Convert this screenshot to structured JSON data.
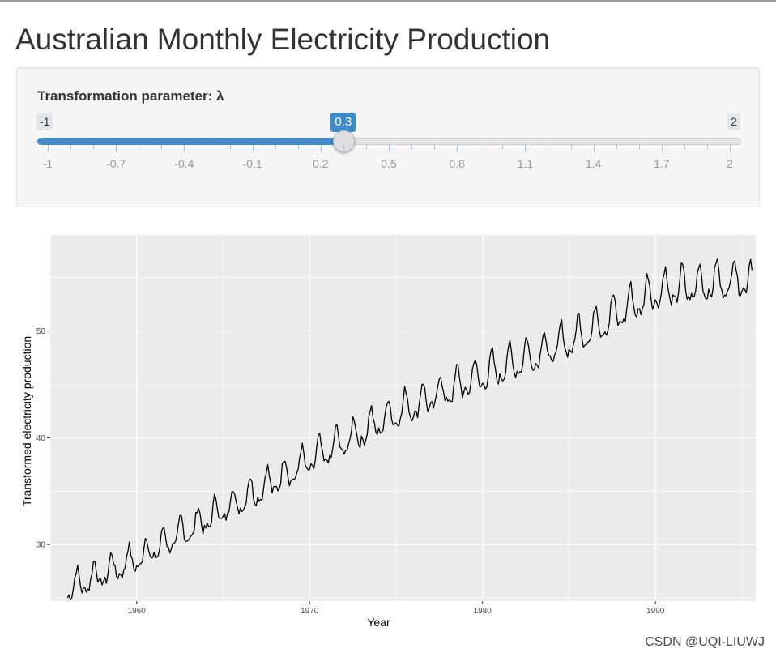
{
  "app": {
    "title": "Australian Monthly Electricity Production",
    "watermark": "CSDN @UQI-LIUWJ"
  },
  "slider": {
    "label": "Transformation parameter: λ",
    "min": -1,
    "max": 2,
    "value": 0.3,
    "min_label": "-1",
    "max_label": "2",
    "value_label": "0.3",
    "ticks": [
      "-1",
      "-0.7",
      "-0.4",
      "-0.1",
      "0.2",
      "0.5",
      "0.8",
      "1.1",
      "1.4",
      "1.7",
      "2"
    ],
    "accent_color": "#428bca"
  },
  "chart_data": {
    "type": "line",
    "title": "",
    "xlabel": "Year",
    "ylabel": "Transformed electricity production",
    "xlim": [
      1955,
      1995.8
    ],
    "ylim": [
      24.7,
      59
    ],
    "x_ticks": [
      1960,
      1970,
      1980,
      1990
    ],
    "x_tick_labels": [
      "1960",
      "1970",
      "1980",
      "1990"
    ],
    "y_ticks": [
      30,
      40,
      50
    ],
    "y_tick_labels": [
      "30",
      "40",
      "50"
    ],
    "grid": true,
    "panel_background": "#ebebeb",
    "line_color": "#000000",
    "series": [
      {
        "name": "Transformed electricity production",
        "start_year": 1956,
        "end_year": 1995.6,
        "frequency": "monthly",
        "trend_anchors": [
          [
            1956,
            25.8
          ],
          [
            1960,
            28.6
          ],
          [
            1965,
            33.2
          ],
          [
            1970,
            37.8
          ],
          [
            1975,
            42.3
          ],
          [
            1980,
            45.8
          ],
          [
            1985,
            49.0
          ],
          [
            1990,
            53.6
          ],
          [
            1995.6,
            55.0
          ]
        ],
        "seasonal_amplitude": 1.3,
        "first_value": 25.0,
        "last_value": 55.7
      }
    ]
  }
}
